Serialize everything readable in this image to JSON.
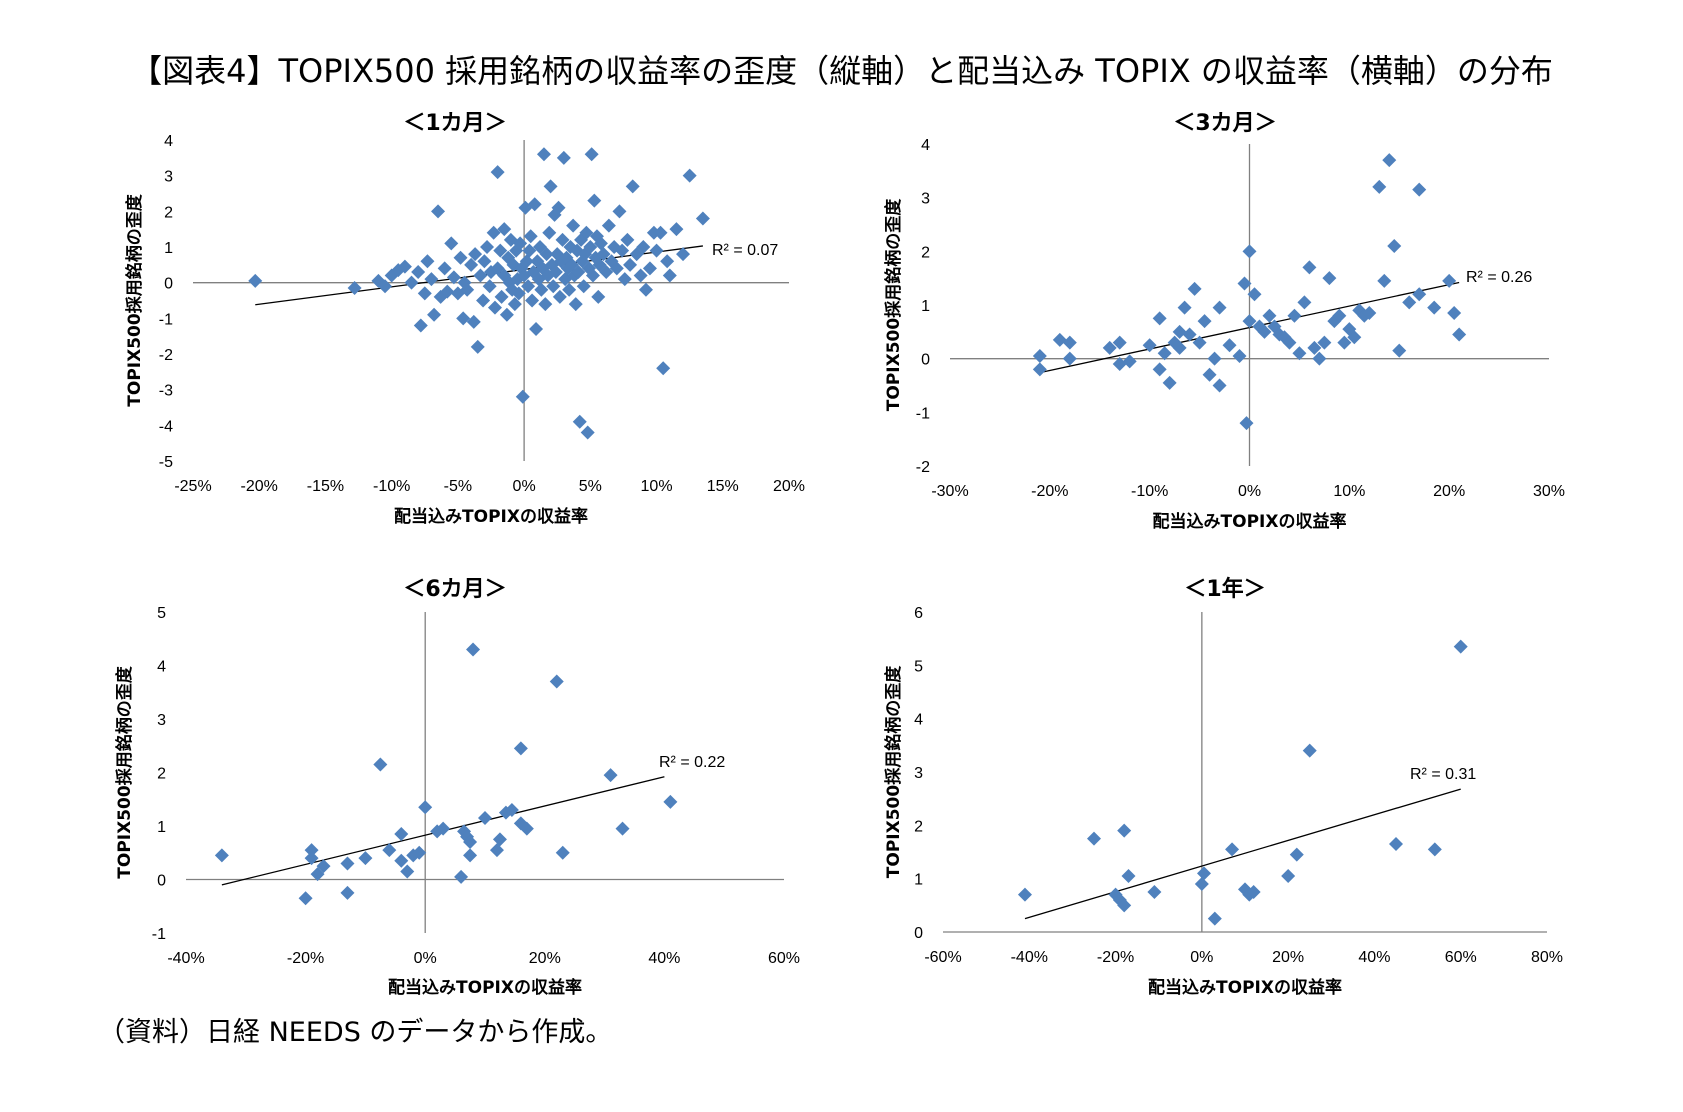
{
  "title": "【図表4】TOPIX500 採用銘柄の収益率の歪度（縦軸）と配当込み TOPIX の収益率（横軸）の分布",
  "source": "（資料）日経 NEEDS のデータから作成。",
  "colors": {
    "marker": "#4F81BD",
    "axis": "#808080",
    "trend": "#000000"
  },
  "chart_data": [
    {
      "type": "scatter",
      "title": "＜1カ月＞",
      "xlabel": "配当込みTOPIXの収益率",
      "ylabel": "TOPIX500採用銘柄の歪度",
      "xlim": [
        -0.25,
        0.2
      ],
      "ylim": [
        -5,
        4
      ],
      "xticks": [
        -0.25,
        -0.2,
        -0.15,
        -0.1,
        -0.05,
        0,
        0.05,
        0.1,
        0.15,
        0.2
      ],
      "xtick_labels": [
        "-25%",
        "-20%",
        "-15%",
        "-10%",
        "-5%",
        "0%",
        "5%",
        "10%",
        "15%",
        "20%"
      ],
      "yticks": [
        -5,
        -4,
        -3,
        -2,
        -1,
        0,
        1,
        2,
        3,
        4
      ],
      "ytick_labels": [
        "-5",
        "-4",
        "-3",
        "-2",
        "-1",
        "0",
        "1",
        "2",
        "3",
        "4"
      ],
      "r2_label": "R² = 0.07",
      "trendline": [
        [
          -0.203,
          -0.62
        ],
        [
          0.135,
          1.03
        ]
      ],
      "points": [
        [
          -0.203,
          0.05
        ],
        [
          -0.128,
          -0.15
        ],
        [
          -0.11,
          0.05
        ],
        [
          -0.105,
          -0.1
        ],
        [
          -0.1,
          0.2
        ],
        [
          -0.095,
          0.35
        ],
        [
          -0.09,
          0.45
        ],
        [
          -0.085,
          0.0
        ],
        [
          -0.08,
          0.3
        ],
        [
          -0.078,
          -1.2
        ],
        [
          -0.075,
          -0.3
        ],
        [
          -0.073,
          0.6
        ],
        [
          -0.07,
          0.1
        ],
        [
          -0.068,
          -0.9
        ],
        [
          -0.065,
          2.0
        ],
        [
          -0.063,
          -0.4
        ],
        [
          -0.06,
          0.4
        ],
        [
          -0.058,
          -0.25
        ],
        [
          -0.055,
          1.1
        ],
        [
          -0.053,
          0.15
        ],
        [
          -0.05,
          -0.3
        ],
        [
          -0.048,
          0.7
        ],
        [
          -0.046,
          -1.0
        ],
        [
          -0.045,
          0.0
        ],
        [
          -0.043,
          -0.2
        ],
        [
          -0.04,
          0.5
        ],
        [
          -0.038,
          -1.1
        ],
        [
          -0.037,
          0.8
        ],
        [
          -0.035,
          -1.8
        ],
        [
          -0.033,
          0.2
        ],
        [
          -0.031,
          -0.5
        ],
        [
          -0.03,
          0.6
        ],
        [
          -0.028,
          1.0
        ],
        [
          -0.026,
          -0.1
        ],
        [
          -0.025,
          0.3
        ],
        [
          -0.023,
          1.4
        ],
        [
          -0.022,
          -0.7
        ],
        [
          -0.02,
          0.4
        ],
        [
          -0.02,
          3.1
        ],
        [
          -0.018,
          0.9
        ],
        [
          -0.017,
          -0.4
        ],
        [
          -0.015,
          0.2
        ],
        [
          -0.015,
          1.5
        ],
        [
          -0.013,
          -0.9
        ],
        [
          -0.012,
          0.7
        ],
        [
          -0.011,
          0.0
        ],
        [
          -0.01,
          1.2
        ],
        [
          -0.009,
          -0.2
        ],
        [
          -0.008,
          0.5
        ],
        [
          -0.007,
          -0.6
        ],
        [
          -0.006,
          0.9
        ],
        [
          -0.005,
          0.1
        ],
        [
          -0.004,
          -0.3
        ],
        [
          -0.003,
          1.1
        ],
        [
          -0.002,
          0.4
        ],
        [
          -0.001,
          -3.2
        ],
        [
          0.0,
          0.2
        ],
        [
          0.001,
          2.1
        ],
        [
          0.002,
          0.6
        ],
        [
          0.003,
          -0.1
        ],
        [
          0.004,
          0.9
        ],
        [
          0.005,
          1.3
        ],
        [
          0.006,
          -0.5
        ],
        [
          0.007,
          0.3
        ],
        [
          0.008,
          2.2
        ],
        [
          0.009,
          -1.3
        ],
        [
          0.01,
          0.6
        ],
        [
          0.011,
          0.1
        ],
        [
          0.012,
          1.0
        ],
        [
          0.013,
          -0.2
        ],
        [
          0.014,
          0.4
        ],
        [
          0.015,
          3.6
        ],
        [
          0.016,
          -0.6
        ],
        [
          0.017,
          0.8
        ],
        [
          0.018,
          0.2
        ],
        [
          0.019,
          1.4
        ],
        [
          0.02,
          2.7
        ],
        [
          0.021,
          0.5
        ],
        [
          0.022,
          -0.1
        ],
        [
          0.023,
          1.9
        ],
        [
          0.024,
          0.3
        ],
        [
          0.025,
          0.8
        ],
        [
          0.026,
          2.1
        ],
        [
          0.027,
          -0.4
        ],
        [
          0.028,
          0.6
        ],
        [
          0.029,
          1.2
        ],
        [
          0.03,
          3.5
        ],
        [
          0.031,
          0.1
        ],
        [
          0.032,
          0.7
        ],
        [
          0.033,
          0.4
        ],
        [
          0.034,
          -0.2
        ],
        [
          0.035,
          1.0
        ],
        [
          0.036,
          0.5
        ],
        [
          0.037,
          1.6
        ],
        [
          0.038,
          0.2
        ],
        [
          0.039,
          -0.6
        ],
        [
          0.04,
          0.9
        ],
        [
          0.041,
          0.3
        ],
        [
          0.042,
          -3.9
        ],
        [
          0.043,
          1.2
        ],
        [
          0.044,
          0.6
        ],
        [
          0.045,
          -0.1
        ],
        [
          0.046,
          0.8
        ],
        [
          0.047,
          1.4
        ],
        [
          0.048,
          -4.2
        ],
        [
          0.049,
          0.4
        ],
        [
          0.05,
          1.0
        ],
        [
          0.051,
          3.6
        ],
        [
          0.052,
          0.2
        ],
        [
          0.053,
          2.3
        ],
        [
          0.054,
          0.7
        ],
        [
          0.055,
          1.3
        ],
        [
          0.056,
          -0.4
        ],
        [
          0.057,
          0.5
        ],
        [
          0.058,
          1.1
        ],
        [
          0.06,
          0.8
        ],
        [
          0.062,
          0.3
        ],
        [
          0.064,
          1.6
        ],
        [
          0.066,
          0.6
        ],
        [
          0.068,
          1.0
        ],
        [
          0.07,
          0.4
        ],
        [
          0.072,
          2.0
        ],
        [
          0.074,
          0.9
        ],
        [
          0.076,
          0.1
        ],
        [
          0.078,
          1.2
        ],
        [
          0.08,
          0.5
        ],
        [
          0.082,
          2.7
        ],
        [
          0.085,
          0.8
        ],
        [
          0.088,
          0.2
        ],
        [
          0.09,
          1.0
        ],
        [
          0.092,
          -0.2
        ],
        [
          0.095,
          0.4
        ],
        [
          0.098,
          1.4
        ],
        [
          0.1,
          0.9
        ],
        [
          0.103,
          1.4
        ],
        [
          0.105,
          -2.4
        ],
        [
          0.108,
          0.6
        ],
        [
          0.11,
          0.2
        ],
        [
          0.115,
          1.5
        ],
        [
          0.12,
          0.8
        ],
        [
          0.125,
          3.0
        ],
        [
          0.135,
          1.8
        ]
      ]
    },
    {
      "type": "scatter",
      "title": "＜3カ月＞",
      "xlabel": "配当込みTOPIXの収益率",
      "ylabel": "TOPIX500採用銘柄の歪度",
      "xlim": [
        -0.3,
        0.3
      ],
      "ylim": [
        -2,
        4
      ],
      "xticks": [
        -0.3,
        -0.2,
        -0.1,
        0,
        0.1,
        0.2,
        0.3
      ],
      "xtick_labels": [
        "-30%",
        "-20%",
        "-10%",
        "0%",
        "10%",
        "20%",
        "30%"
      ],
      "yticks": [
        -2,
        -1,
        0,
        1,
        2,
        3,
        4
      ],
      "ytick_labels": [
        "-2",
        "-1",
        "0",
        "1",
        "2",
        "3",
        "4"
      ],
      "r2_label": "R² = 0.26",
      "trendline": [
        [
          -0.21,
          -0.26
        ],
        [
          0.21,
          1.42
        ]
      ],
      "points": [
        [
          -0.21,
          0.05
        ],
        [
          -0.21,
          -0.2
        ],
        [
          -0.19,
          0.35
        ],
        [
          -0.18,
          0.3
        ],
        [
          -0.18,
          0.0
        ],
        [
          -0.14,
          0.2
        ],
        [
          -0.13,
          -0.1
        ],
        [
          -0.13,
          0.3
        ],
        [
          -0.12,
          -0.05
        ],
        [
          -0.1,
          0.25
        ],
        [
          -0.09,
          -0.2
        ],
        [
          -0.09,
          0.75
        ],
        [
          -0.085,
          0.1
        ],
        [
          -0.08,
          -0.45
        ],
        [
          -0.075,
          0.3
        ],
        [
          -0.07,
          0.5
        ],
        [
          -0.07,
          0.2
        ],
        [
          -0.065,
          0.95
        ],
        [
          -0.06,
          0.45
        ],
        [
          -0.055,
          1.3
        ],
        [
          -0.05,
          0.3
        ],
        [
          -0.045,
          0.7
        ],
        [
          -0.04,
          -0.3
        ],
        [
          -0.035,
          0.0
        ],
        [
          -0.03,
          0.95
        ],
        [
          -0.03,
          -0.5
        ],
        [
          -0.02,
          0.25
        ],
        [
          -0.01,
          0.05
        ],
        [
          -0.005,
          1.4
        ],
        [
          -0.003,
          -1.2
        ],
        [
          0.0,
          2.0
        ],
        [
          0.0,
          0.7
        ],
        [
          0.005,
          1.2
        ],
        [
          0.01,
          0.6
        ],
        [
          0.015,
          0.5
        ],
        [
          0.02,
          0.8
        ],
        [
          0.025,
          0.6
        ],
        [
          0.03,
          0.45
        ],
        [
          0.035,
          0.4
        ],
        [
          0.04,
          0.3
        ],
        [
          0.045,
          0.8
        ],
        [
          0.05,
          0.1
        ],
        [
          0.055,
          1.05
        ],
        [
          0.06,
          1.7
        ],
        [
          0.065,
          0.2
        ],
        [
          0.07,
          0.0
        ],
        [
          0.075,
          0.3
        ],
        [
          0.08,
          1.5
        ],
        [
          0.085,
          0.7
        ],
        [
          0.09,
          0.8
        ],
        [
          0.095,
          0.3
        ],
        [
          0.1,
          0.55
        ],
        [
          0.105,
          0.4
        ],
        [
          0.11,
          0.9
        ],
        [
          0.115,
          0.8
        ],
        [
          0.12,
          0.85
        ],
        [
          0.13,
          3.2
        ],
        [
          0.135,
          1.45
        ],
        [
          0.14,
          3.7
        ],
        [
          0.145,
          2.1
        ],
        [
          0.15,
          0.15
        ],
        [
          0.16,
          1.05
        ],
        [
          0.17,
          1.2
        ],
        [
          0.17,
          3.15
        ],
        [
          0.185,
          0.95
        ],
        [
          0.2,
          1.45
        ],
        [
          0.205,
          0.85
        ],
        [
          0.21,
          0.45
        ]
      ]
    },
    {
      "type": "scatter",
      "title": "＜6カ月＞",
      "xlabel": "配当込みTOPIXの収益率",
      "ylabel": "TOPIX500採用銘柄の歪度",
      "xlim": [
        -0.4,
        0.6
      ],
      "ylim": [
        -1,
        5
      ],
      "xticks": [
        -0.4,
        -0.2,
        0,
        0.2,
        0.4,
        0.6
      ],
      "xtick_labels": [
        "-40%",
        "-20%",
        "0%",
        "20%",
        "40%",
        "60%"
      ],
      "yticks": [
        -1,
        0,
        1,
        2,
        3,
        4,
        5
      ],
      "ytick_labels": [
        "-1",
        "0",
        "1",
        "2",
        "3",
        "4",
        "5"
      ],
      "r2_label": "R² = 0.22",
      "trendline": [
        [
          -0.34,
          -0.1
        ],
        [
          0.4,
          1.92
        ]
      ],
      "points": [
        [
          -0.34,
          0.45
        ],
        [
          -0.2,
          -0.35
        ],
        [
          -0.19,
          0.4
        ],
        [
          -0.19,
          0.55
        ],
        [
          -0.18,
          0.1
        ],
        [
          -0.17,
          0.25
        ],
        [
          -0.13,
          -0.25
        ],
        [
          -0.13,
          0.3
        ],
        [
          -0.1,
          0.4
        ],
        [
          -0.075,
          2.15
        ],
        [
          -0.06,
          0.55
        ],
        [
          -0.04,
          0.85
        ],
        [
          -0.04,
          0.35
        ],
        [
          -0.03,
          0.15
        ],
        [
          -0.02,
          0.45
        ],
        [
          -0.01,
          0.5
        ],
        [
          0.0,
          1.35
        ],
        [
          0.02,
          0.9
        ],
        [
          0.03,
          0.95
        ],
        [
          0.06,
          0.05
        ],
        [
          0.065,
          0.9
        ],
        [
          0.07,
          0.8
        ],
        [
          0.075,
          0.7
        ],
        [
          0.075,
          0.45
        ],
        [
          0.08,
          4.3
        ],
        [
          0.1,
          1.15
        ],
        [
          0.12,
          0.55
        ],
        [
          0.125,
          0.75
        ],
        [
          0.135,
          1.25
        ],
        [
          0.145,
          1.3
        ],
        [
          0.16,
          2.45
        ],
        [
          0.16,
          1.05
        ],
        [
          0.17,
          0.95
        ],
        [
          0.22,
          3.7
        ],
        [
          0.23,
          0.5
        ],
        [
          0.31,
          1.95
        ],
        [
          0.33,
          0.95
        ],
        [
          0.41,
          1.45
        ]
      ]
    },
    {
      "type": "scatter",
      "title": "＜1年＞",
      "xlabel": "配当込みTOPIXの収益率",
      "ylabel": "TOPIX500採用銘柄の歪度",
      "xlim": [
        -0.6,
        0.8
      ],
      "ylim": [
        0,
        6
      ],
      "xticks": [
        -0.6,
        -0.4,
        -0.2,
        0,
        0.2,
        0.4,
        0.6,
        0.8
      ],
      "xtick_labels": [
        "-60%",
        "-40%",
        "-20%",
        "0%",
        "20%",
        "40%",
        "60%",
        "80%"
      ],
      "yticks": [
        0,
        1,
        2,
        3,
        4,
        5,
        6
      ],
      "ytick_labels": [
        "0",
        "1",
        "2",
        "3",
        "4",
        "5",
        "6"
      ],
      "r2_label": "R² = 0.31",
      "trendline": [
        [
          -0.41,
          0.25
        ],
        [
          0.6,
          2.68
        ]
      ],
      "points": [
        [
          -0.41,
          0.7
        ],
        [
          -0.25,
          1.75
        ],
        [
          -0.2,
          0.7
        ],
        [
          -0.19,
          0.6
        ],
        [
          -0.18,
          1.9
        ],
        [
          -0.18,
          0.5
        ],
        [
          -0.17,
          1.05
        ],
        [
          -0.11,
          0.75
        ],
        [
          0.0,
          0.9
        ],
        [
          0.005,
          1.1
        ],
        [
          0.03,
          0.25
        ],
        [
          0.07,
          1.55
        ],
        [
          0.1,
          0.8
        ],
        [
          0.11,
          0.7
        ],
        [
          0.12,
          0.75
        ],
        [
          0.2,
          1.05
        ],
        [
          0.22,
          1.45
        ],
        [
          0.25,
          3.4
        ],
        [
          0.45,
          1.65
        ],
        [
          0.54,
          1.55
        ],
        [
          0.6,
          5.35
        ]
      ]
    }
  ]
}
